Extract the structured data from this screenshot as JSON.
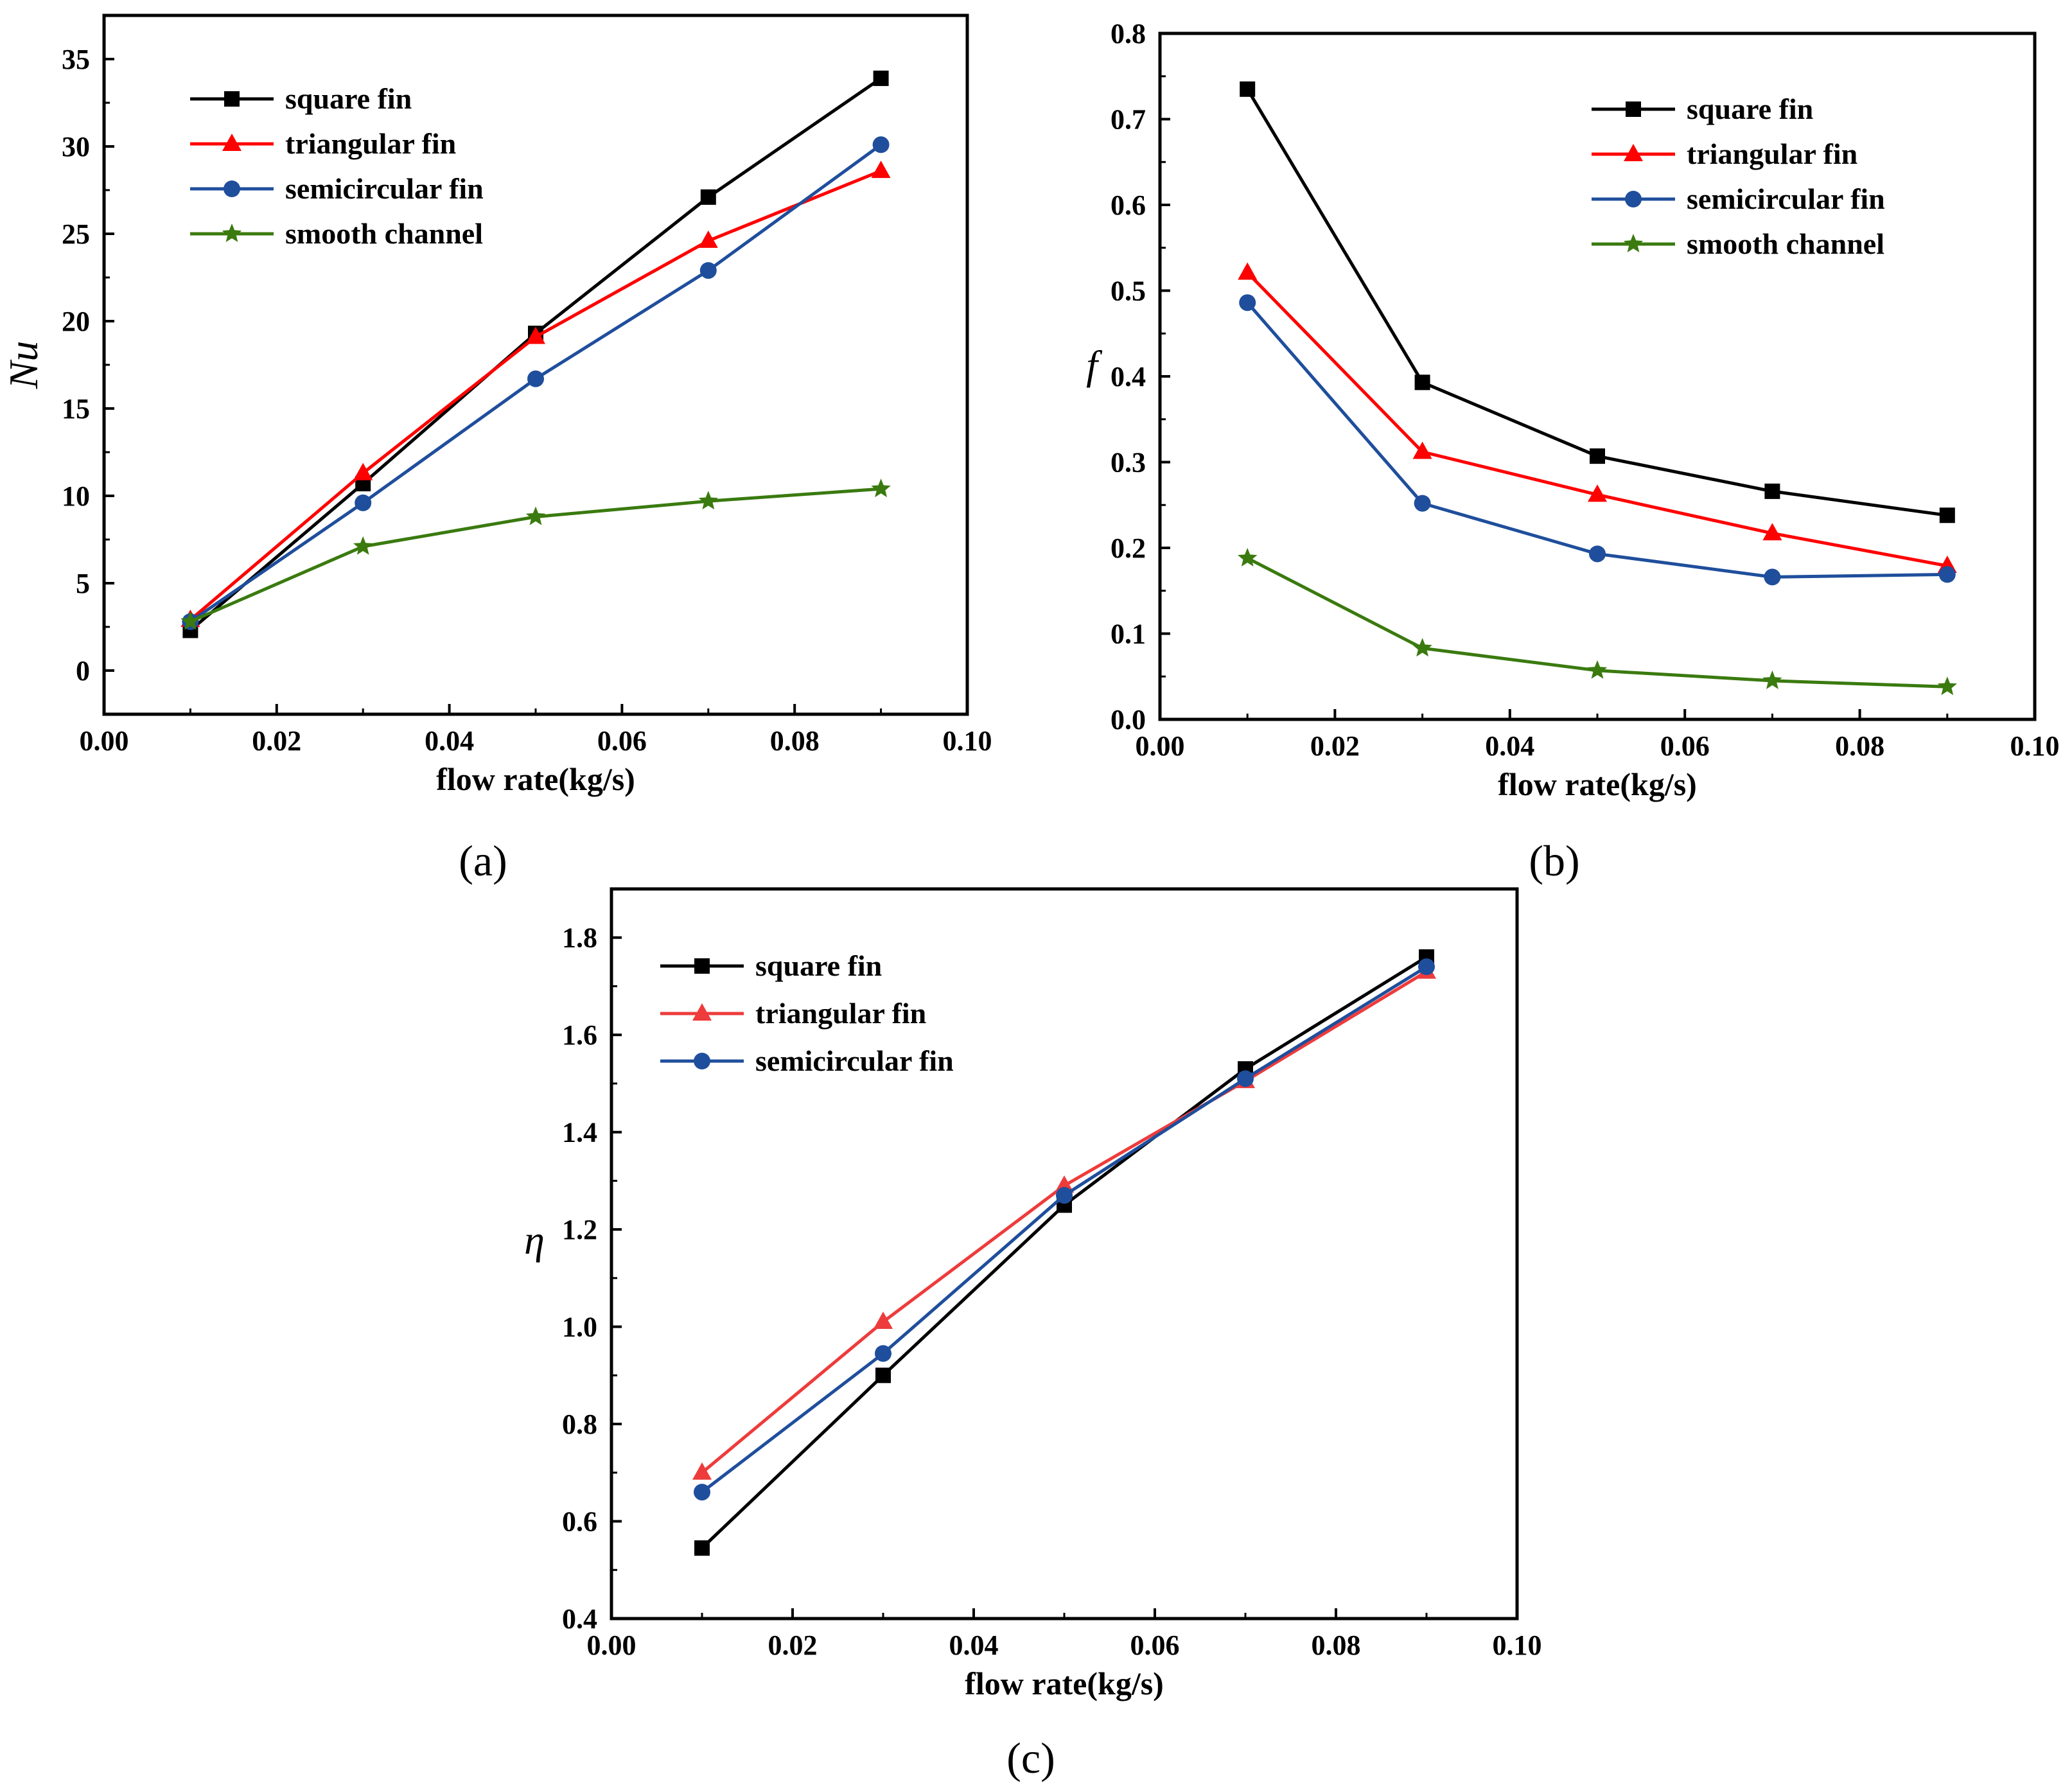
{
  "chart_data": [
    {
      "type": "line",
      "panel_label": "(a)",
      "xlabel": "flow rate(kg/s)",
      "ylabel": "Nu",
      "xlim": [
        0.0,
        0.1
      ],
      "ylim": [
        -2.5,
        37.5
      ],
      "xticks": [
        "0.00",
        "0.02",
        "0.04",
        "0.06",
        "0.08",
        "0.10"
      ],
      "yticks": [
        "0",
        "5",
        "10",
        "15",
        "20",
        "25",
        "30",
        "35"
      ],
      "legend_position": "top-left",
      "x": [
        0.01,
        0.03,
        0.05,
        0.07,
        0.09
      ],
      "series": [
        {
          "name": "square fin",
          "color": "#000000",
          "marker": "square",
          "values": [
            2.3,
            10.7,
            19.3,
            27.1,
            33.9
          ]
        },
        {
          "name": "triangular fin",
          "color": "#ff0000",
          "marker": "triangle",
          "values": [
            2.9,
            11.3,
            19.1,
            24.6,
            28.6
          ]
        },
        {
          "name": "semicircular fin",
          "color": "#1f4e9c",
          "marker": "circle",
          "values": [
            2.8,
            9.6,
            16.7,
            22.9,
            30.1
          ]
        },
        {
          "name": "smooth channel",
          "color": "#3a7a0f",
          "marker": "star",
          "values": [
            2.8,
            7.1,
            8.8,
            9.7,
            10.4
          ]
        }
      ]
    },
    {
      "type": "line",
      "panel_label": "(b)",
      "xlabel": "flow rate(kg/s)",
      "ylabel": "f",
      "xlim": [
        0.0,
        0.1
      ],
      "ylim": [
        0.0,
        0.8
      ],
      "xticks": [
        "0.00",
        "0.02",
        "0.04",
        "0.06",
        "0.08",
        "0.10"
      ],
      "yticks": [
        "0.0",
        "0.1",
        "0.2",
        "0.3",
        "0.4",
        "0.5",
        "0.6",
        "0.7",
        "0.8"
      ],
      "legend_position": "top-right",
      "x": [
        0.01,
        0.03,
        0.05,
        0.07,
        0.09
      ],
      "series": [
        {
          "name": "square fin",
          "color": "#000000",
          "marker": "square",
          "values": [
            0.735,
            0.393,
            0.307,
            0.266,
            0.238
          ]
        },
        {
          "name": "triangular fin",
          "color": "#ff0000",
          "marker": "triangle",
          "values": [
            0.521,
            0.312,
            0.262,
            0.217,
            0.179
          ]
        },
        {
          "name": "semicircular fin",
          "color": "#1f4e9c",
          "marker": "circle",
          "values": [
            0.486,
            0.252,
            0.193,
            0.166,
            0.169
          ]
        },
        {
          "name": "smooth channel",
          "color": "#3a7a0f",
          "marker": "star",
          "values": [
            0.188,
            0.083,
            0.057,
            0.045,
            0.038
          ]
        }
      ]
    },
    {
      "type": "line",
      "panel_label": "(c)",
      "xlabel": "flow rate(kg/s)",
      "ylabel": "η",
      "xlim": [
        0.0,
        0.1
      ],
      "ylim": [
        0.4,
        1.9
      ],
      "xticks": [
        "0.00",
        "0.02",
        "0.04",
        "0.06",
        "0.08",
        "0.10"
      ],
      "yticks": [
        "0.4",
        "0.6",
        "0.8",
        "1.0",
        "1.2",
        "1.4",
        "1.6",
        "1.8"
      ],
      "legend_position": "top-left",
      "x": [
        0.01,
        0.03,
        0.05,
        0.07,
        0.09
      ],
      "series": [
        {
          "name": "square fin",
          "color": "#000000",
          "marker": "square",
          "values": [
            0.545,
            0.9,
            1.25,
            1.53,
            1.76
          ]
        },
        {
          "name": "triangular fin",
          "color": "#ee3b3b",
          "marker": "triangle",
          "values": [
            0.7,
            1.01,
            1.29,
            1.505,
            1.73
          ]
        },
        {
          "name": "semicircular fin",
          "color": "#1f4e9c",
          "marker": "circle",
          "values": [
            0.66,
            0.945,
            1.27,
            1.51,
            1.74
          ]
        }
      ]
    }
  ]
}
